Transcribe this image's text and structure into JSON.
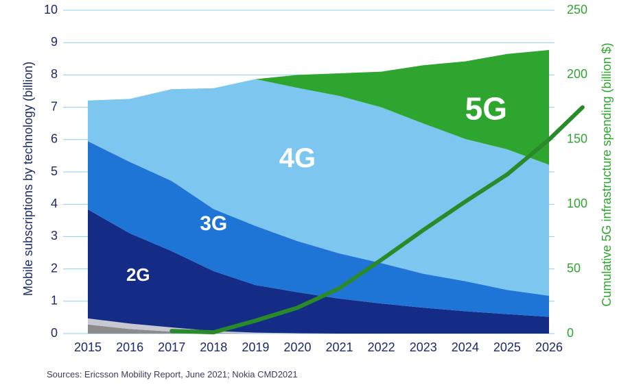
{
  "chart_data": {
    "type": "area",
    "x": [
      2015,
      2016,
      2017,
      2018,
      2019,
      2020,
      2021,
      2022,
      2023,
      2024,
      2025,
      2026
    ],
    "stack_order": [
      "other-dark",
      "other-light",
      "2G",
      "3G",
      "4G",
      "5G"
    ],
    "series": [
      {
        "name": "",
        "key": "other-dark",
        "color": "#8c8c8c",
        "values": [
          0.28,
          0.14,
          0.06,
          0.02,
          0,
          0,
          0,
          0,
          0,
          0,
          0,
          0
        ]
      },
      {
        "name": "",
        "key": "other-light",
        "color": "#c8c8d2",
        "values": [
          0.19,
          0.17,
          0.13,
          0.06,
          0.03,
          0.01,
          0,
          0,
          0,
          0,
          0,
          0
        ]
      },
      {
        "name": "2G",
        "key": "2G",
        "color": "#142c86",
        "values": [
          3.37,
          2.79,
          2.36,
          1.85,
          1.47,
          1.27,
          1.08,
          0.93,
          0.8,
          0.69,
          0.6,
          0.52
        ]
      },
      {
        "name": "3G",
        "key": "3G",
        "color": "#1f75d6",
        "values": [
          2.11,
          2.21,
          2.17,
          1.92,
          1.83,
          1.58,
          1.4,
          1.25,
          1.05,
          0.93,
          0.75,
          0.65
        ]
      },
      {
        "name": "4G",
        "key": "4G",
        "color": "#7cc6f0",
        "values": [
          1.26,
          1.95,
          2.84,
          3.74,
          4.54,
          4.74,
          4.87,
          4.82,
          4.65,
          4.4,
          4.35,
          4.05
        ]
      },
      {
        "name": "5G",
        "key": "5G",
        "color": "#2ea52e",
        "values": [
          0,
          0,
          0,
          0,
          0,
          0.4,
          0.7,
          1.1,
          1.8,
          2.4,
          2.95,
          3.55
        ]
      }
    ],
    "line_series": {
      "name": "",
      "axis": "right",
      "color": "#2a8a2a",
      "x": [
        2017,
        2018,
        2019,
        2020,
        2021,
        2022,
        2023,
        2024,
        2025,
        2026,
        2026.8
      ],
      "values": [
        2,
        1,
        10,
        20,
        35,
        57,
        80,
        102,
        123,
        150,
        175
      ]
    },
    "area_labels": [
      {
        "text": "2G",
        "series": "2G"
      },
      {
        "text": "3G",
        "series": "3G"
      },
      {
        "text": "4G",
        "series": "4G"
      },
      {
        "text": "5G",
        "series": "5G"
      }
    ],
    "left_axis": {
      "label": "Mobile subscriptions by technology (billion)",
      "range": [
        0,
        10
      ],
      "ticks": [
        0,
        1,
        2,
        3,
        4,
        5,
        6,
        7,
        8,
        9,
        10
      ],
      "color": "#1b2a6b"
    },
    "right_axis": {
      "label": "Cumulative 5G infrastructure spending (billion $)",
      "range": [
        0,
        250
      ],
      "ticks": [
        0,
        50,
        100,
        150,
        200,
        250
      ],
      "color": "#2ea52e"
    },
    "x_ticks": [
      "2015",
      "2016",
      "2017",
      "2018",
      "2019",
      "2020",
      "2021",
      "2022",
      "2023",
      "2024",
      "2025",
      "2026"
    ],
    "grid": true,
    "grid_color": "#8fcdea",
    "source": "Sources: Ericsson Mobility Report, June 2021; Nokia CMD2021"
  }
}
